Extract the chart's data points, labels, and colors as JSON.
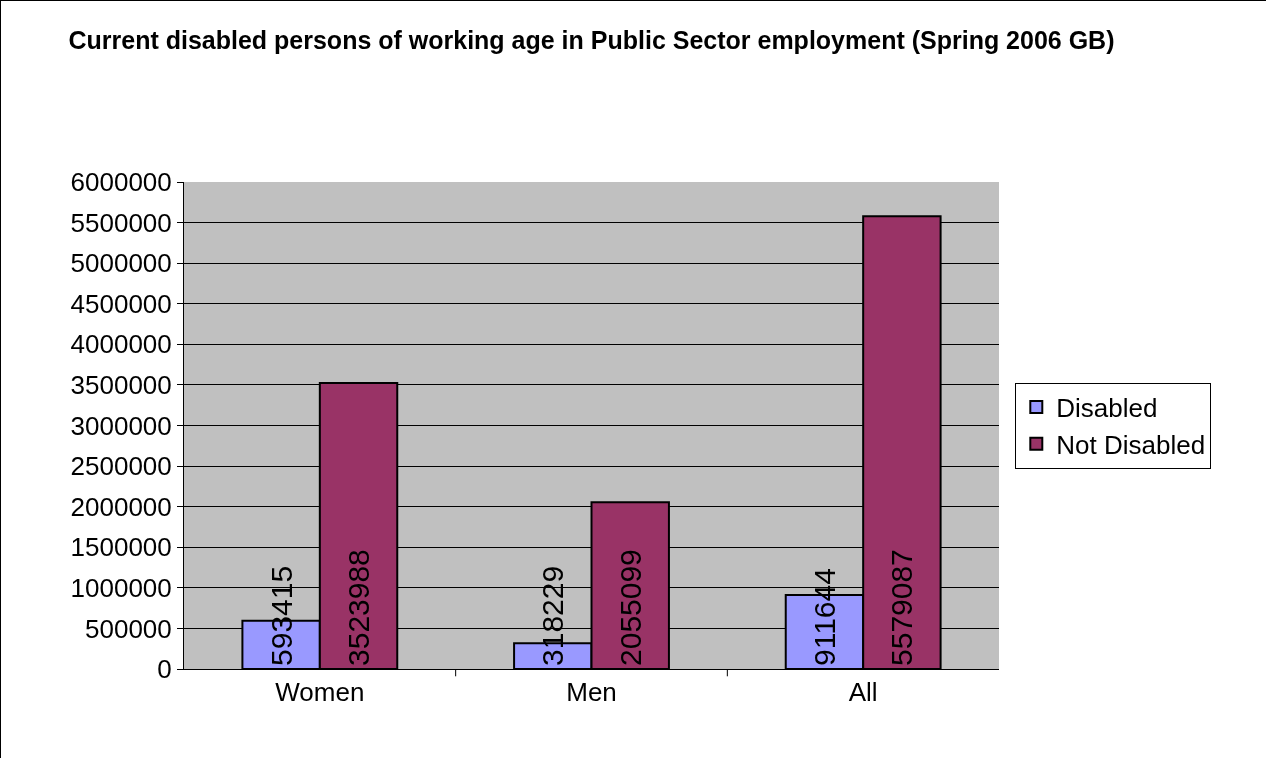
{
  "chart_data": {
    "type": "bar",
    "title": "Current disabled persons of working age in Public Sector employment (Spring 2006 GB)",
    "categories": [
      "Women",
      "Men",
      "All"
    ],
    "series": [
      {
        "name": "Disabled",
        "color": "#9999ff",
        "values": [
          593415,
          318229,
          911644
        ]
      },
      {
        "name": "Not Disabled",
        "color": "#993366",
        "values": [
          3523988,
          2055099,
          5579087
        ]
      }
    ],
    "ylim": [
      0,
      6000000
    ],
    "yticks": [
      0,
      500000,
      1000000,
      1500000,
      2000000,
      2500000,
      3000000,
      3500000,
      4000000,
      4500000,
      5000000,
      5500000,
      6000000
    ],
    "grid": "y",
    "legend": "right",
    "data_labels": true
  }
}
